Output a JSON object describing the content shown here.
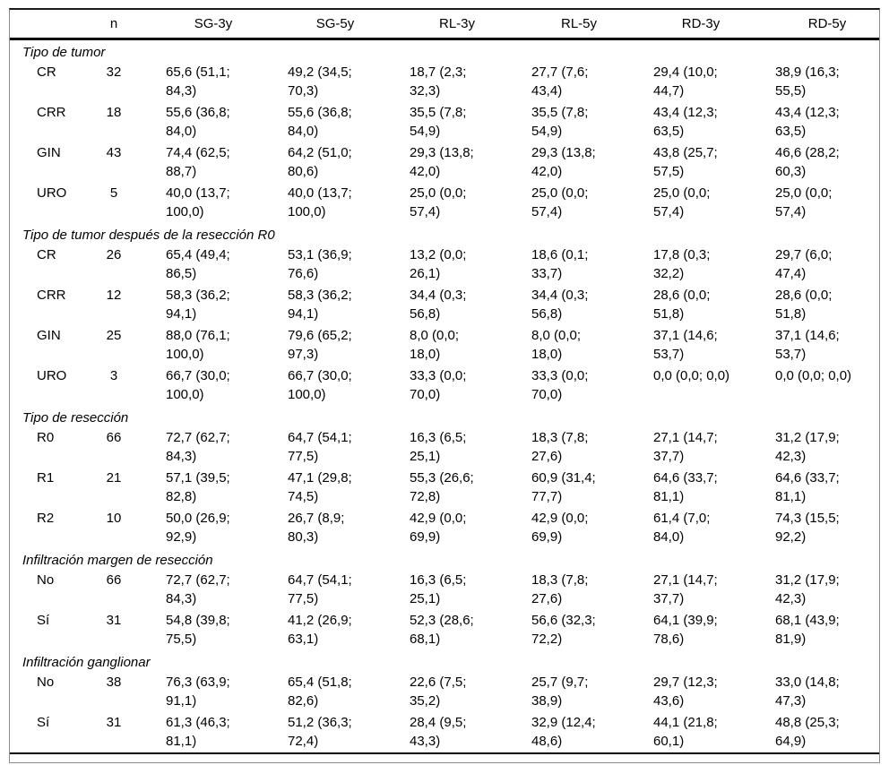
{
  "table": {
    "columns": [
      "",
      "n",
      "SG-3y",
      "SG-5y",
      "RL-3y",
      "RL-5y",
      "RD-3y",
      "RD-5y"
    ],
    "sections": [
      {
        "title": "Tipo de tumor",
        "rows": [
          {
            "label": "CR",
            "n": "32",
            "values": [
              "65,6 (51,1; 84,3)",
              "49,2 (34,5; 70,3)",
              "18,7 (2,3; 32,3)",
              "27,7 (7,6; 43,4)",
              "29,4 (10,0; 44,7)",
              "38,9 (16,3; 55,5)"
            ]
          },
          {
            "label": "CRR",
            "n": "18",
            "values": [
              "55,6 (36,8; 84,0)",
              "55,6 (36,8; 84,0)",
              "35,5 (7,8; 54,9)",
              "35,5 (7,8; 54,9)",
              "43,4 (12,3; 63,5)",
              "43,4 (12,3; 63,5)"
            ]
          },
          {
            "label": "GIN",
            "n": "43",
            "values": [
              "74,4 (62,5; 88,7)",
              "64,2 (51,0; 80,6)",
              "29,3 (13,8; 42,0)",
              "29,3 (13,8; 42,0)",
              "43,8 (25,7; 57,5)",
              "46,6 (28,2; 60,3)"
            ]
          },
          {
            "label": "URO",
            "n": "5",
            "values": [
              "40,0 (13,7; 100,0)",
              "40,0 (13,7; 100,0)",
              "25,0 (0,0; 57,4)",
              "25,0 (0,0; 57,4)",
              "25,0 (0,0; 57,4)",
              "25,0 (0,0; 57,4)"
            ]
          }
        ]
      },
      {
        "title": "Tipo de tumor después de la resección R0",
        "rows": [
          {
            "label": "CR",
            "n": "26",
            "values": [
              "65,4 (49,4; 86,5)",
              "53,1 (36,9; 76,6)",
              "13,2 (0,0; 26,1)",
              "18,6 (0,1; 33,7)",
              "17,8 (0,3; 32,2)",
              "29,7 (6,0; 47,4)"
            ]
          },
          {
            "label": "CRR",
            "n": "12",
            "values": [
              "58,3 (36,2; 94,1)",
              "58,3 (36,2; 94,1)",
              "34,4 (0,3; 56,8)",
              "34,4 (0,3; 56,8)",
              "28,6 (0,0; 51,8)",
              "28,6 (0,0; 51,8)"
            ]
          },
          {
            "label": "GIN",
            "n": "25",
            "values": [
              "88,0 (76,1; 100,0)",
              "79,6 (65,2; 97,3)",
              "8,0 (0,0; 18,0)",
              "8,0 (0,0; 18,0)",
              "37,1 (14,6; 53,7)",
              "37,1 (14,6; 53,7)"
            ]
          },
          {
            "label": "URO",
            "n": "3",
            "values": [
              "66,7 (30,0; 100,0)",
              "66,7 (30,0; 100,0)",
              "33,3 (0,0; 70,0)",
              "33,3 (0,0; 70,0)",
              "0,0 (0,0; 0,0)",
              "0,0 (0,0; 0,0)"
            ]
          }
        ]
      },
      {
        "title": "Tipo de resección",
        "rows": [
          {
            "label": "R0",
            "n": "66",
            "values": [
              "72,7 (62,7; 84,3)",
              "64,7 (54,1; 77,5)",
              "16,3 (6,5; 25,1)",
              "18,3 (7,8; 27,6)",
              "27,1 (14,7; 37,7)",
              "31,2 (17,9; 42,3)"
            ]
          },
          {
            "label": "R1",
            "n": "21",
            "values": [
              "57,1 (39,5; 82,8)",
              "47,1 (29,8; 74,5)",
              "55,3 (26,6; 72,8)",
              "60,9 (31,4; 77,7)",
              "64,6 (33,7; 81,1)",
              "64,6 (33,7; 81,1)"
            ]
          },
          {
            "label": "R2",
            "n": "10",
            "values": [
              "50,0 (26,9; 92,9)",
              "26,7 (8,9; 80,3)",
              "42,9 (0,0; 69,9)",
              "42,9 (0,0; 69,9)",
              "61,4 (7,0; 84,0)",
              "74,3 (15,5; 92,2)"
            ]
          }
        ]
      },
      {
        "title": "Infiltración margen de resección",
        "rows": [
          {
            "label": "No",
            "n": "66",
            "values": [
              "72,7 (62,7; 84,3)",
              "64,7 (54,1; 77,5)",
              "16,3 (6,5; 25,1)",
              "18,3 (7,8; 27,6)",
              "27,1 (14,7; 37,7)",
              "31,2 (17,9; 42,3)"
            ]
          },
          {
            "label": "Sí",
            "n": "31",
            "values": [
              "54,8 (39,8; 75,5)",
              "41,2 (26,9; 63,1)",
              "52,3 (28,6; 68,1)",
              "56,6 (32,3; 72,2)",
              "64,1 (39,9; 78,6)",
              "68,1 (43,9; 81,9)"
            ]
          }
        ]
      },
      {
        "title": "Infiltración ganglionar",
        "rows": [
          {
            "label": "No",
            "n": "38",
            "values": [
              "76,3 (63,9; 91,1)",
              "65,4 (51,8; 82,6)",
              "22,6 (7,5; 35,2)",
              "25,7 (9,7; 38,9)",
              "29,7 (12,3; 43,6)",
              "33,0 (14,8; 47,3)"
            ]
          },
          {
            "label": "Sí",
            "n": "31",
            "values": [
              "61,3 (46,3; 81,1)",
              "51,2 (36,3; 72,4)",
              "28,4 (9,5; 43,3)",
              "32,9 (12,4; 48,6)",
              "44,1 (21,8; 60,1)",
              "48,8 (25,3; 64,9)"
            ]
          }
        ]
      }
    ]
  }
}
